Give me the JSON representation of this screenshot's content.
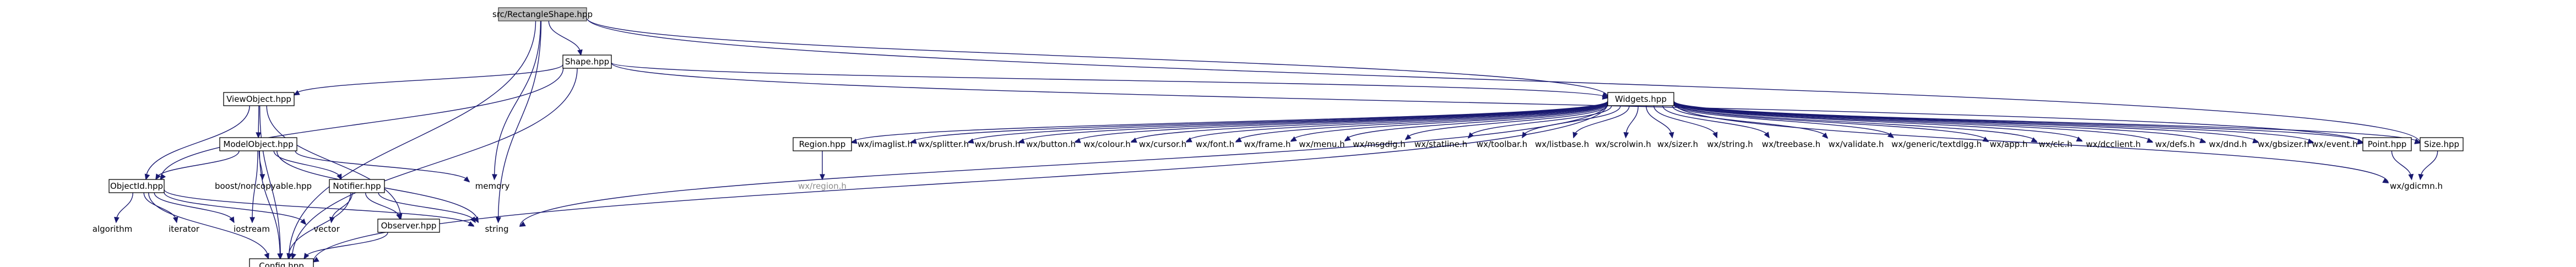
{
  "diagram": {
    "type": "include-dependency-graph",
    "nodes": [
      {
        "id": "root",
        "label": "src/RectangleShape.hpp",
        "style": "root"
      },
      {
        "id": "shape",
        "label": "Shape.hpp",
        "style": "bordered"
      },
      {
        "id": "viewobject",
        "label": "ViewObject.hpp",
        "style": "bordered"
      },
      {
        "id": "modelobject",
        "label": "ModelObject.hpp",
        "style": "bordered"
      },
      {
        "id": "objectid",
        "label": "ObjectId.hpp",
        "style": "bordered"
      },
      {
        "id": "notifier",
        "label": "Notifier.hpp",
        "style": "bordered"
      },
      {
        "id": "observer",
        "label": "Observer.hpp",
        "style": "bordered"
      },
      {
        "id": "config",
        "label": "Config.hpp",
        "style": "bordered"
      },
      {
        "id": "memory",
        "label": "memory",
        "style": "plain"
      },
      {
        "id": "string",
        "label": "string",
        "style": "plain"
      },
      {
        "id": "vector",
        "label": "vector",
        "style": "plain"
      },
      {
        "id": "iostream",
        "label": "iostream",
        "style": "plain"
      },
      {
        "id": "iterator",
        "label": "iterator",
        "style": "plain"
      },
      {
        "id": "algorithm",
        "label": "algorithm",
        "style": "plain"
      },
      {
        "id": "noncopyable",
        "label": "boost/noncopyable.hpp",
        "style": "plain"
      },
      {
        "id": "widgets",
        "label": "Widgets.hpp",
        "style": "bordered"
      },
      {
        "id": "region",
        "label": "Region.hpp",
        "style": "bordered"
      },
      {
        "id": "wxregion",
        "label": "wx/region.h",
        "style": "muted"
      },
      {
        "id": "point",
        "label": "Point.hpp",
        "style": "bordered"
      },
      {
        "id": "size",
        "label": "Size.hpp",
        "style": "bordered"
      },
      {
        "id": "gdicmn",
        "label": "wx/gdicmn.h",
        "style": "plain"
      },
      {
        "id": "imaglist",
        "label": "wx/imaglist.h",
        "style": "plain"
      },
      {
        "id": "splitter",
        "label": "wx/splitter.h",
        "style": "plain"
      },
      {
        "id": "brush",
        "label": "wx/brush.h",
        "style": "plain"
      },
      {
        "id": "button",
        "label": "wx/button.h",
        "style": "plain"
      },
      {
        "id": "colour",
        "label": "wx/colour.h",
        "style": "plain"
      },
      {
        "id": "cursor",
        "label": "wx/cursor.h",
        "style": "plain"
      },
      {
        "id": "font",
        "label": "wx/font.h",
        "style": "plain"
      },
      {
        "id": "frame",
        "label": "wx/frame.h",
        "style": "plain"
      },
      {
        "id": "menu",
        "label": "wx/menu.h",
        "style": "plain"
      },
      {
        "id": "msgdlg",
        "label": "wx/msgdlg.h",
        "style": "plain"
      },
      {
        "id": "statline",
        "label": "wx/statline.h",
        "style": "plain"
      },
      {
        "id": "toolbar",
        "label": "wx/toolbar.h",
        "style": "plain"
      },
      {
        "id": "listbase",
        "label": "wx/listbase.h",
        "style": "plain"
      },
      {
        "id": "scrolwin",
        "label": "wx/scrolwin.h",
        "style": "plain"
      },
      {
        "id": "sizer",
        "label": "wx/sizer.h",
        "style": "plain"
      },
      {
        "id": "wxstring",
        "label": "wx/string.h",
        "style": "plain"
      },
      {
        "id": "treebase",
        "label": "wx/treebase.h",
        "style": "plain"
      },
      {
        "id": "validate",
        "label": "wx/validate.h",
        "style": "plain"
      },
      {
        "id": "textdlgg",
        "label": "wx/generic/textdlgg.h",
        "style": "plain"
      },
      {
        "id": "app",
        "label": "wx/app.h",
        "style": "plain"
      },
      {
        "id": "clc",
        "label": "wx/clc.h",
        "style": "plain"
      },
      {
        "id": "dcclient",
        "label": "wx/dcclient.h",
        "style": "plain"
      },
      {
        "id": "defs",
        "label": "wx/defs.h",
        "style": "plain"
      },
      {
        "id": "dnd",
        "label": "wx/dnd.h",
        "style": "plain"
      },
      {
        "id": "event",
        "label": "wx/event.h",
        "style": "plain"
      },
      {
        "id": "gbsizer",
        "label": "wx/gbsizer.h",
        "style": "plain"
      }
    ],
    "edges": [
      [
        "root",
        "shape"
      ],
      [
        "root",
        "widgets"
      ],
      [
        "root",
        "size"
      ],
      [
        "root",
        "config"
      ],
      [
        "root",
        "memory"
      ],
      [
        "root",
        "string"
      ],
      [
        "shape",
        "viewobject"
      ],
      [
        "shape",
        "objectid"
      ],
      [
        "shape",
        "widgets"
      ],
      [
        "shape",
        "point"
      ],
      [
        "shape",
        "config"
      ],
      [
        "viewobject",
        "modelobject"
      ],
      [
        "viewobject",
        "objectid"
      ],
      [
        "viewobject",
        "observer"
      ],
      [
        "viewobject",
        "config"
      ],
      [
        "modelobject",
        "objectid"
      ],
      [
        "modelobject",
        "noncopyable"
      ],
      [
        "modelobject",
        "notifier"
      ],
      [
        "modelobject",
        "memory"
      ],
      [
        "modelobject",
        "iostream"
      ],
      [
        "modelobject",
        "string"
      ],
      [
        "modelobject",
        "config"
      ],
      [
        "objectid",
        "algorithm"
      ],
      [
        "objectid",
        "iterator"
      ],
      [
        "objectid",
        "iostream"
      ],
      [
        "objectid",
        "vector"
      ],
      [
        "objectid",
        "string"
      ],
      [
        "objectid",
        "config"
      ],
      [
        "notifier",
        "vector"
      ],
      [
        "notifier",
        "observer"
      ],
      [
        "notifier",
        "string"
      ],
      [
        "notifier",
        "config"
      ],
      [
        "observer",
        "config"
      ],
      [
        "widgets",
        "region"
      ],
      [
        "widgets",
        "imaglist"
      ],
      [
        "widgets",
        "splitter"
      ],
      [
        "widgets",
        "brush"
      ],
      [
        "widgets",
        "button"
      ],
      [
        "widgets",
        "colour"
      ],
      [
        "widgets",
        "cursor"
      ],
      [
        "widgets",
        "font"
      ],
      [
        "widgets",
        "frame"
      ],
      [
        "widgets",
        "menu"
      ],
      [
        "widgets",
        "msgdlg"
      ],
      [
        "widgets",
        "statline"
      ],
      [
        "widgets",
        "toolbar"
      ],
      [
        "widgets",
        "listbase"
      ],
      [
        "widgets",
        "scrolwin"
      ],
      [
        "widgets",
        "sizer"
      ],
      [
        "widgets",
        "wxstring"
      ],
      [
        "widgets",
        "treebase"
      ],
      [
        "widgets",
        "validate"
      ],
      [
        "widgets",
        "textdlgg"
      ],
      [
        "widgets",
        "app"
      ],
      [
        "widgets",
        "clc"
      ],
      [
        "widgets",
        "dcclient"
      ],
      [
        "widgets",
        "defs"
      ],
      [
        "widgets",
        "dnd"
      ],
      [
        "widgets",
        "event"
      ],
      [
        "widgets",
        "gbsizer"
      ],
      [
        "widgets",
        "point"
      ],
      [
        "widgets",
        "size"
      ],
      [
        "widgets",
        "gdicmn"
      ],
      [
        "widgets",
        "string"
      ],
      [
        "widgets",
        "config"
      ],
      [
        "region",
        "wxregion"
      ],
      [
        "point",
        "gdicmn"
      ],
      [
        "size",
        "gdicmn"
      ]
    ]
  }
}
